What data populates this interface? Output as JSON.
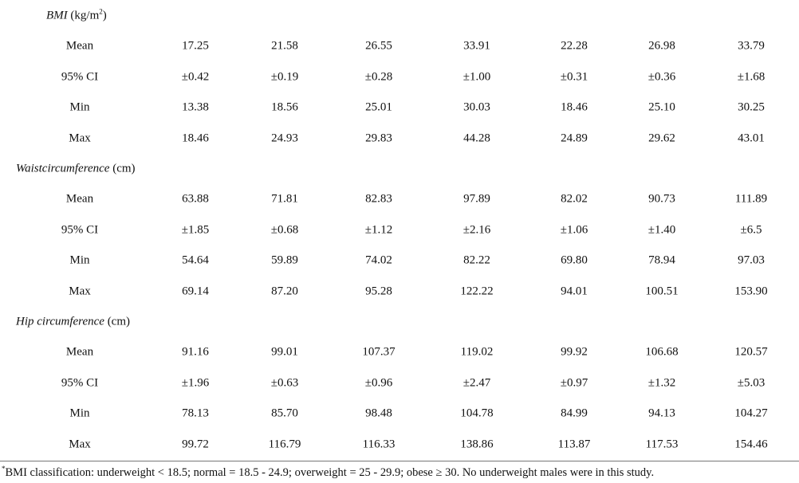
{
  "sections": [
    {
      "heading": {
        "name": "BMI",
        "unit": "(kg/m",
        "unit_sup": "2",
        "unit_end": ")"
      },
      "rows": [
        {
          "label": "Mean",
          "values": [
            "17.25",
            "21.58",
            "26.55",
            "33.91",
            "22.28",
            "26.98",
            "33.79"
          ]
        },
        {
          "label": "95% CI",
          "values": [
            "±0.42",
            "±0.19",
            "±0.28",
            "±1.00",
            "±0.31",
            "±0.36",
            "±1.68"
          ]
        },
        {
          "label": "Min",
          "values": [
            "13.38",
            "18.56",
            "25.01",
            "30.03",
            "18.46",
            "25.10",
            "30.25"
          ]
        },
        {
          "label": "Max",
          "values": [
            "18.46",
            "24.93",
            "29.83",
            "44.28",
            "24.89",
            "29.62",
            "43.01"
          ]
        }
      ]
    },
    {
      "heading": {
        "name": "Waistcircumference",
        "unit": "(cm)"
      },
      "rows": [
        {
          "label": "Mean",
          "values": [
            "63.88",
            "71.81",
            "82.83",
            "97.89",
            "82.02",
            "90.73",
            "111.89"
          ]
        },
        {
          "label": "95% CI",
          "values": [
            "±1.85",
            "±0.68",
            "±1.12",
            "±2.16",
            "±1.06",
            "±1.40",
            "±6.5"
          ]
        },
        {
          "label": "Min",
          "values": [
            "54.64",
            "59.89",
            "74.02",
            "82.22",
            "69.80",
            "78.94",
            "97.03"
          ]
        },
        {
          "label": "Max",
          "values": [
            "69.14",
            "87.20",
            "95.28",
            "122.22",
            "94.01",
            "100.51",
            "153.90"
          ]
        }
      ]
    },
    {
      "heading": {
        "name": "Hip circumference",
        "unit": "(cm)"
      },
      "rows": [
        {
          "label": "Mean",
          "values": [
            "91.16",
            "99.01",
            "107.37",
            "119.02",
            "99.92",
            "106.68",
            "120.57"
          ]
        },
        {
          "label": "95% CI",
          "values": [
            "±1.96",
            "±0.63",
            "±0.96",
            "±2.47",
            "±0.97",
            "±1.32",
            "±5.03"
          ]
        },
        {
          "label": "Min",
          "values": [
            "78.13",
            "85.70",
            "98.48",
            "104.78",
            "84.99",
            "94.13",
            "104.27"
          ]
        },
        {
          "label": "Max",
          "values": [
            "99.72",
            "116.79",
            "116.33",
            "138.86",
            "113.87",
            "117.53",
            "154.46"
          ]
        }
      ]
    }
  ],
  "footnote": {
    "marker": "*",
    "text": "BMI classification: underweight < 18.5; normal = 18.5 - 24.9; overweight = 25 - 29.9; obese ≥ 30. No underweight males were in this study."
  }
}
